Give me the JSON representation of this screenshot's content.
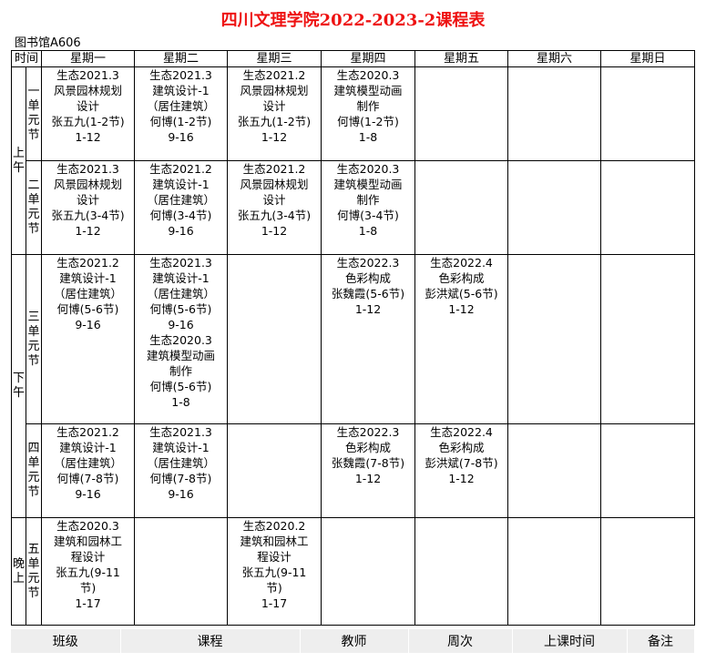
{
  "title": "四川文理学院2022-2023-2课程表",
  "room": "图书馆A606",
  "header": {
    "time": "时间",
    "days": [
      "星期一",
      "星期二",
      "星期三",
      "星期四",
      "星期五",
      "星期六",
      "星期日"
    ]
  },
  "periods": [
    {
      "label": "上午",
      "rows": [
        0,
        1
      ]
    },
    {
      "label": "下午",
      "rows": [
        2,
        3
      ]
    },
    {
      "label": "晚上",
      "rows": [
        4
      ]
    }
  ],
  "rows": [
    {
      "label": "一单元节",
      "cells": [
        [
          "生态2021.3",
          "风景园林规划",
          "设计",
          "张五九(1-2节)",
          "1-12"
        ],
        [
          "生态2021.3",
          "建筑设计-1",
          "（居住建筑）",
          "何博(1-2节)",
          "9-16"
        ],
        [
          "生态2021.2",
          "风景园林规划",
          "设计",
          "张五九(1-2节)",
          "1-12"
        ],
        [
          "生态2020.3",
          "建筑模型动画",
          "制作",
          "何博(1-2节)",
          "1-8"
        ],
        [],
        [],
        []
      ]
    },
    {
      "label": "二单元节",
      "cells": [
        [
          "生态2021.3",
          "风景园林规划",
          "设计",
          "张五九(3-4节)",
          "1-12"
        ],
        [
          "生态2021.2",
          "建筑设计-1",
          "（居住建筑）",
          "何博(3-4节)",
          "9-16"
        ],
        [
          "生态2021.2",
          "风景园林规划",
          "设计",
          "张五九(3-4节)",
          "1-12"
        ],
        [
          "生态2020.3",
          "建筑模型动画",
          "制作",
          "何博(3-4节)",
          "1-8"
        ],
        [],
        [],
        []
      ]
    },
    {
      "label": "三单元节",
      "cells": [
        [
          "生态2021.2",
          "建筑设计-1",
          "（居住建筑）",
          "何博(5-6节)",
          "9-16"
        ],
        [
          "生态2021.3",
          "建筑设计-1",
          "（居住建筑）",
          "何博(5-6节)",
          "9-16",
          "生态2020.3",
          "建筑模型动画",
          "制作",
          "何博(5-6节)",
          "1-8"
        ],
        [],
        [
          "生态2022.3",
          "色彩构成",
          "张魏霞(5-6节)",
          "1-12"
        ],
        [
          "生态2022.4",
          "色彩构成",
          "彭洪斌(5-6节)",
          "1-12"
        ],
        [],
        []
      ]
    },
    {
      "label": "四单元节",
      "cells": [
        [
          "生态2021.2",
          "建筑设计-1",
          "（居住建筑）",
          "何博(7-8节)",
          "9-16"
        ],
        [
          "生态2021.3",
          "建筑设计-1",
          "（居住建筑）",
          "何博(7-8节)",
          "9-16"
        ],
        [],
        [
          "生态2022.3",
          "色彩构成",
          "张魏霞(7-8节)",
          "1-12"
        ],
        [
          "生态2022.4",
          "色彩构成",
          "彭洪斌(7-8节)",
          "1-12"
        ],
        [],
        []
      ]
    },
    {
      "label": "五单元节",
      "cells": [
        [
          "生态2020.3",
          "建筑和园林工",
          "程设计",
          "张五九(9-11",
          "节)",
          "1-17"
        ],
        [],
        [
          "生态2020.2",
          "建筑和园林工",
          "程设计",
          "张五九(9-11",
          "节)",
          "1-17"
        ],
        [],
        [],
        [],
        []
      ]
    }
  ],
  "legend": [
    "班级",
    "课程",
    "教师",
    "周次",
    "上课时间",
    "备注"
  ],
  "colors": {
    "title": "#ee1111",
    "legend_bg": "#eeeeee"
  }
}
